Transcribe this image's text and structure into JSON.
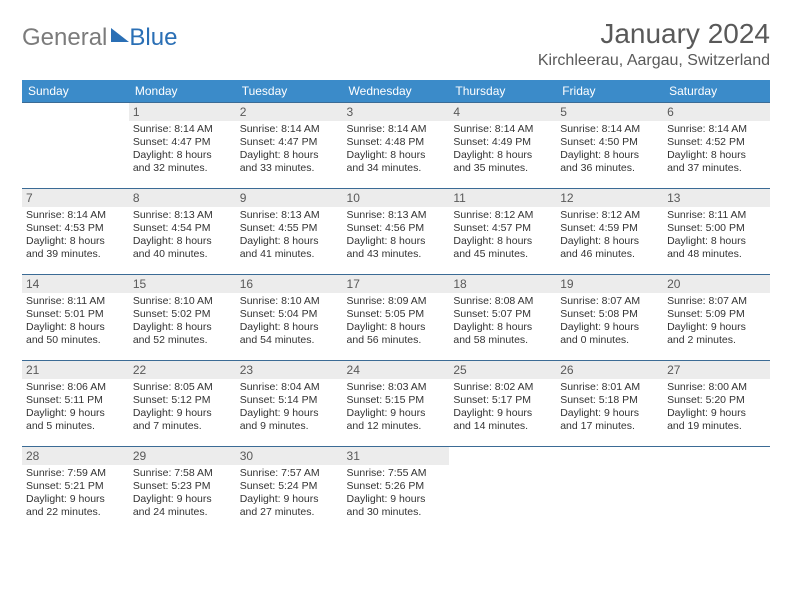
{
  "brand": {
    "part1": "General",
    "part2": "Blue"
  },
  "header": {
    "title": "January 2024",
    "location": "Kirchleerau, Aargau, Switzerland"
  },
  "colors": {
    "header_bg": "#3b8bc9",
    "header_fg": "#ffffff",
    "row_border": "#3b6b95",
    "daynum_bg": "#ececec",
    "text": "#333333",
    "muted": "#595959",
    "brand_gray": "#7b7b7b",
    "brand_blue": "#2a6fb5",
    "page_bg": "#ffffff"
  },
  "typography": {
    "title_fontsize": 28,
    "subtitle_fontsize": 16,
    "dayhead_fontsize": 12,
    "body_fontsize": 10.5,
    "font_family": "Arial"
  },
  "calendar": {
    "day_headers": [
      "Sunday",
      "Monday",
      "Tuesday",
      "Wednesday",
      "Thursday",
      "Friday",
      "Saturday"
    ],
    "weeks": [
      [
        {
          "empty": true
        },
        {
          "num": "1",
          "l1": "Sunrise: 8:14 AM",
          "l2": "Sunset: 4:47 PM",
          "l3": "Daylight: 8 hours",
          "l4": "and 32 minutes."
        },
        {
          "num": "2",
          "l1": "Sunrise: 8:14 AM",
          "l2": "Sunset: 4:47 PM",
          "l3": "Daylight: 8 hours",
          "l4": "and 33 minutes."
        },
        {
          "num": "3",
          "l1": "Sunrise: 8:14 AM",
          "l2": "Sunset: 4:48 PM",
          "l3": "Daylight: 8 hours",
          "l4": "and 34 minutes."
        },
        {
          "num": "4",
          "l1": "Sunrise: 8:14 AM",
          "l2": "Sunset: 4:49 PM",
          "l3": "Daylight: 8 hours",
          "l4": "and 35 minutes."
        },
        {
          "num": "5",
          "l1": "Sunrise: 8:14 AM",
          "l2": "Sunset: 4:50 PM",
          "l3": "Daylight: 8 hours",
          "l4": "and 36 minutes."
        },
        {
          "num": "6",
          "l1": "Sunrise: 8:14 AM",
          "l2": "Sunset: 4:52 PM",
          "l3": "Daylight: 8 hours",
          "l4": "and 37 minutes."
        }
      ],
      [
        {
          "num": "7",
          "l1": "Sunrise: 8:14 AM",
          "l2": "Sunset: 4:53 PM",
          "l3": "Daylight: 8 hours",
          "l4": "and 39 minutes."
        },
        {
          "num": "8",
          "l1": "Sunrise: 8:13 AM",
          "l2": "Sunset: 4:54 PM",
          "l3": "Daylight: 8 hours",
          "l4": "and 40 minutes."
        },
        {
          "num": "9",
          "l1": "Sunrise: 8:13 AM",
          "l2": "Sunset: 4:55 PM",
          "l3": "Daylight: 8 hours",
          "l4": "and 41 minutes."
        },
        {
          "num": "10",
          "l1": "Sunrise: 8:13 AM",
          "l2": "Sunset: 4:56 PM",
          "l3": "Daylight: 8 hours",
          "l4": "and 43 minutes."
        },
        {
          "num": "11",
          "l1": "Sunrise: 8:12 AM",
          "l2": "Sunset: 4:57 PM",
          "l3": "Daylight: 8 hours",
          "l4": "and 45 minutes."
        },
        {
          "num": "12",
          "l1": "Sunrise: 8:12 AM",
          "l2": "Sunset: 4:59 PM",
          "l3": "Daylight: 8 hours",
          "l4": "and 46 minutes."
        },
        {
          "num": "13",
          "l1": "Sunrise: 8:11 AM",
          "l2": "Sunset: 5:00 PM",
          "l3": "Daylight: 8 hours",
          "l4": "and 48 minutes."
        }
      ],
      [
        {
          "num": "14",
          "l1": "Sunrise: 8:11 AM",
          "l2": "Sunset: 5:01 PM",
          "l3": "Daylight: 8 hours",
          "l4": "and 50 minutes."
        },
        {
          "num": "15",
          "l1": "Sunrise: 8:10 AM",
          "l2": "Sunset: 5:02 PM",
          "l3": "Daylight: 8 hours",
          "l4": "and 52 minutes."
        },
        {
          "num": "16",
          "l1": "Sunrise: 8:10 AM",
          "l2": "Sunset: 5:04 PM",
          "l3": "Daylight: 8 hours",
          "l4": "and 54 minutes."
        },
        {
          "num": "17",
          "l1": "Sunrise: 8:09 AM",
          "l2": "Sunset: 5:05 PM",
          "l3": "Daylight: 8 hours",
          "l4": "and 56 minutes."
        },
        {
          "num": "18",
          "l1": "Sunrise: 8:08 AM",
          "l2": "Sunset: 5:07 PM",
          "l3": "Daylight: 8 hours",
          "l4": "and 58 minutes."
        },
        {
          "num": "19",
          "l1": "Sunrise: 8:07 AM",
          "l2": "Sunset: 5:08 PM",
          "l3": "Daylight: 9 hours",
          "l4": "and 0 minutes."
        },
        {
          "num": "20",
          "l1": "Sunrise: 8:07 AM",
          "l2": "Sunset: 5:09 PM",
          "l3": "Daylight: 9 hours",
          "l4": "and 2 minutes."
        }
      ],
      [
        {
          "num": "21",
          "l1": "Sunrise: 8:06 AM",
          "l2": "Sunset: 5:11 PM",
          "l3": "Daylight: 9 hours",
          "l4": "and 5 minutes."
        },
        {
          "num": "22",
          "l1": "Sunrise: 8:05 AM",
          "l2": "Sunset: 5:12 PM",
          "l3": "Daylight: 9 hours",
          "l4": "and 7 minutes."
        },
        {
          "num": "23",
          "l1": "Sunrise: 8:04 AM",
          "l2": "Sunset: 5:14 PM",
          "l3": "Daylight: 9 hours",
          "l4": "and 9 minutes."
        },
        {
          "num": "24",
          "l1": "Sunrise: 8:03 AM",
          "l2": "Sunset: 5:15 PM",
          "l3": "Daylight: 9 hours",
          "l4": "and 12 minutes."
        },
        {
          "num": "25",
          "l1": "Sunrise: 8:02 AM",
          "l2": "Sunset: 5:17 PM",
          "l3": "Daylight: 9 hours",
          "l4": "and 14 minutes."
        },
        {
          "num": "26",
          "l1": "Sunrise: 8:01 AM",
          "l2": "Sunset: 5:18 PM",
          "l3": "Daylight: 9 hours",
          "l4": "and 17 minutes."
        },
        {
          "num": "27",
          "l1": "Sunrise: 8:00 AM",
          "l2": "Sunset: 5:20 PM",
          "l3": "Daylight: 9 hours",
          "l4": "and 19 minutes."
        }
      ],
      [
        {
          "num": "28",
          "l1": "Sunrise: 7:59 AM",
          "l2": "Sunset: 5:21 PM",
          "l3": "Daylight: 9 hours",
          "l4": "and 22 minutes."
        },
        {
          "num": "29",
          "l1": "Sunrise: 7:58 AM",
          "l2": "Sunset: 5:23 PM",
          "l3": "Daylight: 9 hours",
          "l4": "and 24 minutes."
        },
        {
          "num": "30",
          "l1": "Sunrise: 7:57 AM",
          "l2": "Sunset: 5:24 PM",
          "l3": "Daylight: 9 hours",
          "l4": "and 27 minutes."
        },
        {
          "num": "31",
          "l1": "Sunrise: 7:55 AM",
          "l2": "Sunset: 5:26 PM",
          "l3": "Daylight: 9 hours",
          "l4": "and 30 minutes."
        },
        {
          "empty": true
        },
        {
          "empty": true
        },
        {
          "empty": true
        }
      ]
    ]
  }
}
